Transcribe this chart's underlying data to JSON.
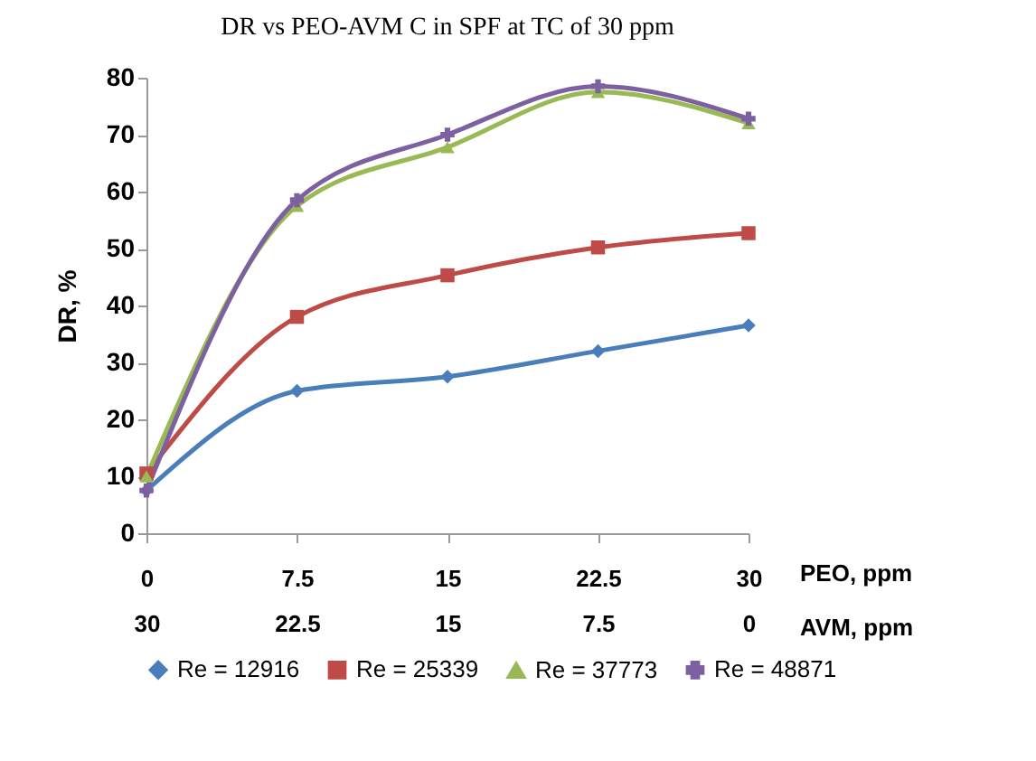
{
  "chart_data": {
    "type": "line",
    "title": "DR vs PEO-AVM C in SPF at TC of 30 ppm",
    "xlabel": "PEO, ppm",
    "x2label": "AVM,  ppm",
    "ylabel": "DR,      %",
    "x": [
      0,
      7.5,
      15,
      22.5,
      30
    ],
    "xlim": [
      0,
      30
    ],
    "xticks": [
      0,
      7.5,
      15,
      22.5,
      30
    ],
    "x2lim": [
      30,
      0
    ],
    "x2ticks": [
      30,
      22.5,
      15,
      7.5,
      0
    ],
    "ylim": [
      0,
      80
    ],
    "yticks": [
      0,
      10,
      20,
      30,
      40,
      50,
      60,
      70,
      80
    ],
    "grid": false,
    "legend": "bottom",
    "series": [
      {
        "name": "Re = 12916",
        "color": "#4a7ebb",
        "marker": "diamond",
        "values": [
          7.5,
          25,
          27.5,
          32,
          36.5
        ]
      },
      {
        "name": "Re = 25339",
        "color": "#be4b48",
        "marker": "square",
        "values": [
          10.5,
          38,
          45.3,
          50.2,
          52.7
        ]
      },
      {
        "name": "Re = 37773",
        "color": "#98b954",
        "marker": "triangle",
        "values": [
          10,
          57.5,
          67.8,
          77.5,
          72
        ]
      },
      {
        "name": "Re = 48871",
        "color": "#7d60a0",
        "marker": "cross",
        "values": [
          7.5,
          58.5,
          70,
          78.5,
          72.8
        ]
      }
    ]
  }
}
